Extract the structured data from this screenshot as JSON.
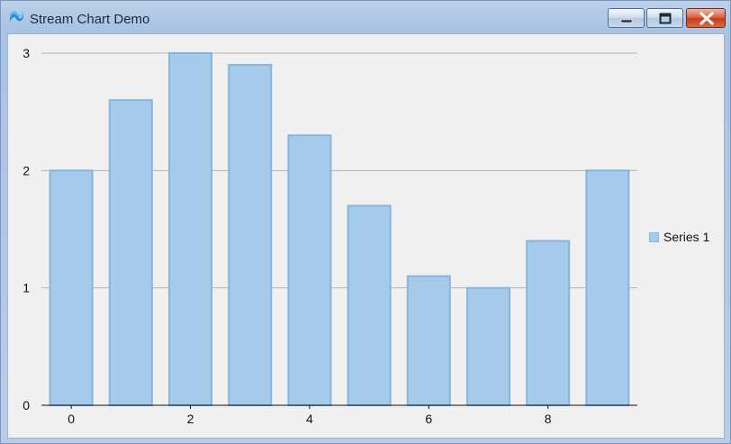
{
  "window": {
    "title": "Stream Chart Demo"
  },
  "icons": {
    "app": "app-logo-icon",
    "minimize": "minimize-icon",
    "maximize": "maximize-icon",
    "close": "close-icon"
  },
  "colors": {
    "bar_fill": "#a6cae9",
    "bar_stroke": "#86b5df",
    "gridline": "#b4b4b4"
  },
  "chart_data": {
    "type": "bar",
    "x": [
      0,
      1,
      2,
      3,
      4,
      5,
      6,
      7,
      8,
      9
    ],
    "series": [
      {
        "name": "Series 1",
        "values": [
          2.0,
          2.6,
          3.0,
          2.9,
          2.3,
          1.7,
          1.1,
          1.0,
          1.4,
          2.0
        ]
      }
    ],
    "xticks": [
      "0",
      "2",
      "4",
      "6",
      "8"
    ],
    "yticks": [
      "0",
      "1",
      "2",
      "3"
    ],
    "ylim": [
      0,
      3
    ],
    "grid": true,
    "legend": "right"
  }
}
